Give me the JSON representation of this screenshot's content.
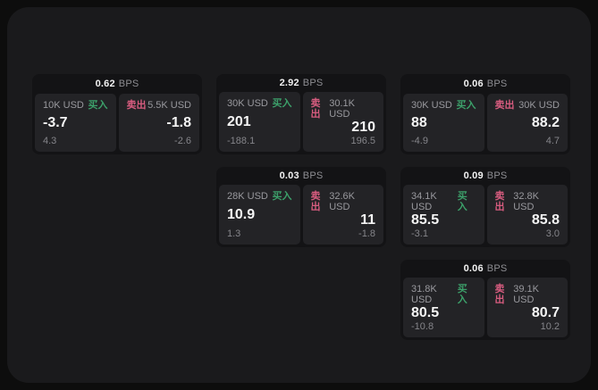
{
  "labels": {
    "bps_unit": "BPS",
    "buy": "买入",
    "sell": "卖出"
  },
  "colors": {
    "buy_green": "#3ca06a",
    "sell_red": "#d75c7f",
    "surface_bg": "#1a1a1c",
    "card_bg": "#131315",
    "pane_bg": "#232326"
  },
  "cards": [
    {
      "bps": "0.62",
      "buy": {
        "amount": "10K USD",
        "price": "-3.7",
        "delta": "4.3"
      },
      "sell": {
        "amount": "5.5K USD",
        "price": "-1.8",
        "delta": "-2.6"
      }
    },
    {
      "bps": "2.92",
      "buy": {
        "amount": "30K USD",
        "price": "201",
        "delta": "-188.1"
      },
      "sell": {
        "amount": "30.1K USD",
        "price": "210",
        "delta": "196.5"
      }
    },
    {
      "bps": "0.06",
      "buy": {
        "amount": "30K USD",
        "price": "88",
        "delta": "-4.9"
      },
      "sell": {
        "amount": "30K USD",
        "price": "88.2",
        "delta": "4.7"
      }
    },
    {
      "bps": "0.03",
      "buy": {
        "amount": "28K USD",
        "price": "10.9",
        "delta": "1.3"
      },
      "sell": {
        "amount": "32.6K USD",
        "price": "11",
        "delta": "-1.8"
      }
    },
    {
      "bps": "0.09",
      "buy": {
        "amount": "34.1K USD",
        "price": "85.5",
        "delta": "-3.1"
      },
      "sell": {
        "amount": "32.8K USD",
        "price": "85.8",
        "delta": "3.0"
      }
    },
    {
      "bps": "0.06",
      "buy": {
        "amount": "31.8K USD",
        "price": "80.5",
        "delta": "-10.8"
      },
      "sell": {
        "amount": "39.1K USD",
        "price": "80.7",
        "delta": "10.2"
      }
    }
  ]
}
